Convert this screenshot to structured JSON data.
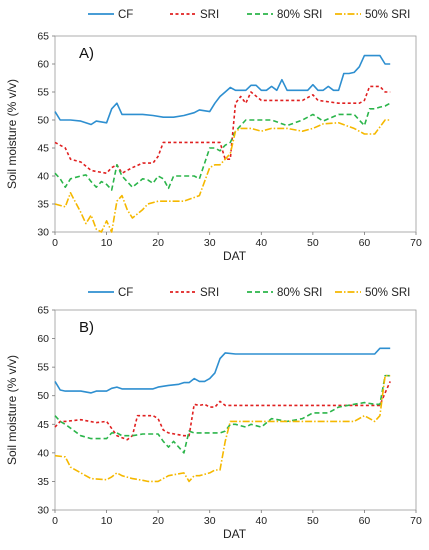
{
  "chart_data": [
    {
      "type": "line",
      "panel_label": "A)",
      "xlabel": "DAT",
      "ylabel": "Soil moisture (% v/v)",
      "xlim": [
        0,
        70
      ],
      "ylim": [
        30,
        65
      ],
      "xticks": [
        0,
        10,
        20,
        30,
        40,
        50,
        60,
        70
      ],
      "yticks": [
        30,
        35,
        40,
        45,
        50,
        55,
        60,
        65
      ],
      "legend_position": "top",
      "series": [
        {
          "name": "CF",
          "color": "#2e8fd0",
          "dash": "solid",
          "x": [
            0,
            1,
            3,
            5,
            7,
            8,
            10,
            11,
            12,
            13,
            15,
            17,
            19,
            21,
            23,
            25,
            27,
            28,
            30,
            31,
            32,
            33,
            34,
            35,
            37,
            38,
            39,
            40,
            41,
            42,
            43,
            44,
            45,
            47,
            49,
            50,
            51,
            52,
            53,
            54,
            55,
            56,
            57,
            58,
            59,
            60,
            61,
            62,
            63,
            64,
            65
          ],
          "y": [
            51.5,
            50.0,
            50.0,
            49.8,
            49.2,
            49.8,
            49.5,
            52.0,
            53.0,
            51.0,
            51.0,
            51.0,
            50.8,
            50.5,
            50.5,
            50.8,
            51.3,
            51.8,
            51.5,
            53.0,
            54.2,
            55.0,
            55.8,
            55.3,
            55.3,
            56.2,
            56.2,
            55.3,
            55.3,
            56.0,
            55.3,
            57.2,
            55.3,
            55.3,
            55.3,
            56.3,
            55.3,
            55.3,
            56.0,
            55.3,
            55.3,
            58.3,
            58.3,
            58.5,
            59.5,
            61.5,
            61.5,
            61.5,
            61.5,
            60.0,
            60.0
          ]
        },
        {
          "name": "SRI",
          "color": "#e02020",
          "dash": "3,2.5",
          "x": [
            0,
            2,
            3,
            5,
            7,
            8,
            10,
            11,
            12,
            13,
            15,
            17,
            19,
            20,
            21,
            25,
            30,
            32,
            33,
            34,
            35,
            36,
            37,
            38,
            40,
            45,
            48,
            50,
            51,
            55,
            59,
            60,
            61,
            62,
            63,
            64,
            65
          ],
          "y": [
            46.0,
            45.0,
            43.0,
            42.5,
            41.0,
            40.8,
            40.5,
            41.5,
            42.0,
            40.5,
            41.5,
            42.3,
            42.3,
            43.5,
            46.0,
            46.0,
            46.0,
            46.0,
            43.0,
            43.0,
            53.0,
            54.2,
            53.0,
            55.0,
            53.5,
            53.5,
            53.5,
            54.5,
            53.5,
            53.0,
            53.0,
            53.5,
            56.0,
            56.0,
            56.0,
            55.0,
            55.0
          ]
        },
        {
          "name": "80% SRI",
          "color": "#2bb54a",
          "dash": "5,3",
          "x": [
            0,
            1,
            2,
            3,
            5,
            6,
            7,
            8,
            9,
            10,
            11,
            12,
            13,
            15,
            17,
            18,
            19,
            20,
            21,
            22,
            23,
            25,
            27,
            28,
            30,
            31,
            32,
            33,
            34,
            35,
            37,
            38,
            40,
            42,
            45,
            48,
            50,
            52,
            55,
            58,
            60,
            61,
            62,
            63,
            64,
            65
          ],
          "y": [
            40.5,
            39.5,
            38.0,
            39.5,
            40.0,
            40.2,
            39.0,
            38.0,
            39.0,
            38.5,
            37.5,
            42.0,
            40.0,
            38.0,
            39.5,
            39.3,
            38.7,
            40.0,
            39.5,
            37.8,
            40.0,
            40.0,
            40.0,
            39.5,
            45.0,
            45.0,
            44.5,
            45.5,
            46.0,
            48.0,
            50.0,
            50.0,
            50.0,
            50.0,
            49.0,
            50.0,
            51.0,
            49.8,
            51.0,
            51.0,
            49.0,
            52.0,
            52.0,
            52.3,
            52.5,
            53.0
          ]
        },
        {
          "name": "50% SRI",
          "color": "#f5b800",
          "dash": "7,2,1.5,2",
          "x": [
            0,
            2,
            3,
            5,
            6,
            7,
            8,
            9,
            10,
            11,
            12,
            13,
            14,
            15,
            17,
            18,
            20,
            25,
            28,
            30,
            31,
            32,
            33,
            34,
            35,
            36,
            38,
            40,
            42,
            45,
            48,
            50,
            52,
            55,
            58,
            60,
            62,
            64,
            65
          ],
          "y": [
            35.0,
            34.5,
            37.0,
            33.5,
            31.5,
            33.0,
            30.5,
            30.0,
            32.0,
            30.0,
            35.5,
            36.5,
            34.0,
            32.5,
            34.0,
            35.0,
            35.5,
            35.5,
            36.5,
            41.5,
            42.0,
            42.0,
            43.0,
            44.0,
            48.0,
            48.5,
            48.5,
            48.0,
            48.5,
            48.5,
            48.0,
            48.5,
            49.3,
            49.5,
            48.5,
            47.5,
            47.5,
            50.0,
            50.0
          ]
        }
      ]
    },
    {
      "type": "line",
      "panel_label": "B)",
      "xlabel": "DAT",
      "ylabel": "Soil moisture (% v/v)",
      "xlim": [
        0,
        70
      ],
      "ylim": [
        30,
        65
      ],
      "xticks": [
        0,
        10,
        20,
        30,
        40,
        50,
        60,
        70
      ],
      "yticks": [
        30,
        35,
        40,
        45,
        50,
        55,
        60,
        65
      ],
      "legend_position": "top",
      "series": [
        {
          "name": "CF",
          "color": "#2e8fd0",
          "dash": "solid",
          "x": [
            0,
            1,
            2,
            5,
            7,
            8,
            10,
            11,
            12,
            13,
            15,
            17,
            19,
            20,
            22,
            24,
            25,
            26,
            27,
            28,
            29,
            30,
            31,
            32,
            33,
            35,
            40,
            45,
            50,
            55,
            60,
            62,
            63,
            64,
            65
          ],
          "y": [
            52.5,
            51.0,
            50.8,
            50.8,
            50.5,
            50.8,
            50.8,
            51.3,
            51.5,
            51.2,
            51.2,
            51.2,
            51.2,
            51.5,
            51.8,
            52.0,
            52.3,
            52.3,
            53.0,
            52.5,
            52.5,
            53.0,
            54.0,
            56.5,
            57.5,
            57.3,
            57.3,
            57.3,
            57.3,
            57.3,
            57.3,
            57.3,
            58.3,
            58.3,
            58.3
          ]
        },
        {
          "name": "SRI",
          "color": "#e02020",
          "dash": "3,2.5",
          "x": [
            0,
            1,
            2,
            5,
            8,
            10,
            12,
            14,
            15,
            16,
            17,
            19,
            20,
            21,
            22,
            25,
            26,
            27,
            28,
            29,
            30,
            31,
            32,
            33,
            35,
            40,
            45,
            50,
            55,
            60,
            63,
            64,
            65
          ],
          "y": [
            44.5,
            45.5,
            45.5,
            45.8,
            45.3,
            45.5,
            43.0,
            42.3,
            43.0,
            46.5,
            46.5,
            46.5,
            46.0,
            44.0,
            43.5,
            43.0,
            43.0,
            48.5,
            48.3,
            48.5,
            48.0,
            48.0,
            49.0,
            48.3,
            48.3,
            48.3,
            48.3,
            48.3,
            48.3,
            48.3,
            48.3,
            50.5,
            52.5
          ]
        },
        {
          "name": "80% SRI",
          "color": "#2bb54a",
          "dash": "5,3",
          "x": [
            0,
            1,
            2,
            5,
            7,
            10,
            11,
            12,
            13,
            15,
            17,
            20,
            21,
            22,
            23,
            25,
            26,
            27,
            28,
            30,
            32,
            33,
            34,
            35,
            37,
            38,
            40,
            42,
            45,
            48,
            50,
            53,
            55,
            58,
            60,
            62,
            63,
            64,
            65
          ],
          "y": [
            46.5,
            45.5,
            45.0,
            43.0,
            42.5,
            42.5,
            43.5,
            43.5,
            43.0,
            43.0,
            43.3,
            43.3,
            42.0,
            41.0,
            42.0,
            40.0,
            43.8,
            43.5,
            43.5,
            43.5,
            43.5,
            43.8,
            45.0,
            45.0,
            44.5,
            45.0,
            44.5,
            46.0,
            45.5,
            46.0,
            47.0,
            47.0,
            48.0,
            48.5,
            48.8,
            48.5,
            48.5,
            53.5,
            53.5
          ]
        },
        {
          "name": "50% SRI",
          "color": "#f5b800",
          "dash": "7,2,1.5,2",
          "x": [
            0,
            2,
            3,
            5,
            7,
            10,
            11,
            12,
            13,
            15,
            17,
            18,
            20,
            22,
            25,
            26,
            27,
            28,
            30,
            31,
            32,
            33,
            34,
            35,
            37,
            40,
            45,
            50,
            55,
            58,
            60,
            62,
            63,
            64,
            65
          ],
          "y": [
            39.5,
            39.3,
            37.5,
            36.5,
            35.5,
            35.3,
            35.8,
            36.5,
            36.0,
            35.5,
            35.2,
            35.0,
            35.0,
            36.0,
            36.5,
            35.0,
            36.0,
            36.0,
            36.5,
            37.0,
            37.0,
            42.0,
            45.5,
            45.5,
            45.5,
            45.5,
            45.5,
            45.5,
            45.5,
            45.5,
            46.5,
            45.5,
            46.5,
            53.5,
            53.5
          ]
        }
      ]
    }
  ]
}
